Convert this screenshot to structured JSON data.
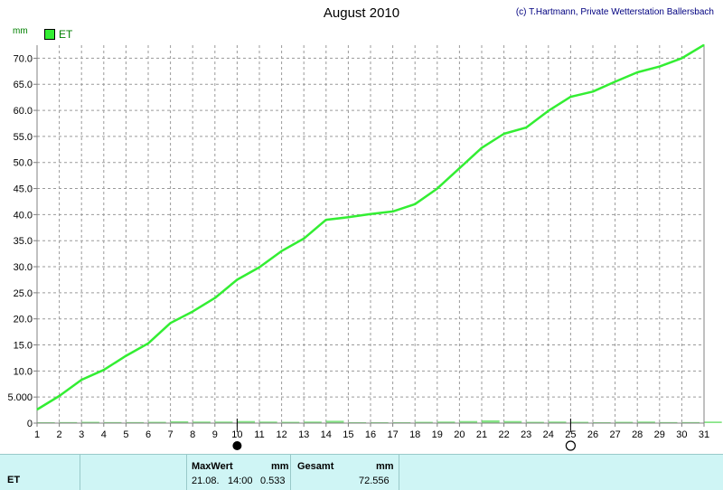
{
  "title": "August 2010",
  "credit": "(c) T.Hartmann, Private Wetterstation Ballersbach",
  "unit": "mm",
  "legend_label": "ET",
  "colors": {
    "line": "#33ee33",
    "bars": "#66dd66",
    "grid": "#9a9a9a",
    "axis": "#808080",
    "footer_bg": "#cff5f5"
  },
  "moon_icons": [
    {
      "day": 10,
      "icon": "new-moon-icon"
    },
    {
      "day": 25,
      "icon": "full-moon-icon"
    }
  ],
  "chart_data": {
    "type": "line",
    "x": [
      1,
      2,
      3,
      4,
      5,
      6,
      7,
      8,
      9,
      10,
      11,
      12,
      13,
      14,
      15,
      16,
      17,
      18,
      19,
      20,
      21,
      22,
      23,
      24,
      25,
      26,
      27,
      28,
      29,
      30,
      31
    ],
    "xlim": [
      1,
      31
    ],
    "ylim": [
      0,
      72.5
    ],
    "y_ticks": [
      "0",
      "5.000",
      "10.0",
      "15.0",
      "20.0",
      "25.0",
      "30.0",
      "35.0",
      "40.0",
      "45.0",
      "50.0",
      "55.0",
      "60.0",
      "65.0",
      "70.0"
    ],
    "y_tick_values": [
      0,
      5,
      10,
      15,
      20,
      25,
      30,
      35,
      40,
      45,
      50,
      55,
      60,
      65,
      70
    ],
    "grid": true,
    "legend_position": "top-left",
    "series": [
      {
        "name": "ET",
        "type": "line",
        "values": [
          2.6,
          5.2,
          8.3,
          10.2,
          12.9,
          15.3,
          19.2,
          21.4,
          24.0,
          27.5,
          29.9,
          33.0,
          35.4,
          39.0,
          39.5,
          40.1,
          40.6,
          42.0,
          45.0,
          48.9,
          52.8,
          55.5,
          56.7,
          59.9,
          62.6,
          63.6,
          65.5,
          67.3,
          68.4,
          70.0,
          72.556
        ]
      },
      {
        "name": "ET",
        "type": "bar",
        "values": [
          0.15,
          0.2,
          0.25,
          0.2,
          0.2,
          0.25,
          0.35,
          0.3,
          0.3,
          0.4,
          0.3,
          0.25,
          0.3,
          0.45,
          0.15,
          0.15,
          0.1,
          0.25,
          0.3,
          0.4,
          0.533,
          0.4,
          0.25,
          0.3,
          0.25,
          0.15,
          0.25,
          0.3,
          0.2,
          0.2,
          0.3
        ]
      }
    ]
  },
  "footer": {
    "series_name": "ET",
    "max_label": "MaxWert",
    "max_unit": "mm",
    "max_date": "21.08.",
    "max_time": "14:00",
    "max_value": "0.533",
    "total_label": "Gesamt",
    "total_unit": "mm",
    "total_value": "72.556"
  }
}
